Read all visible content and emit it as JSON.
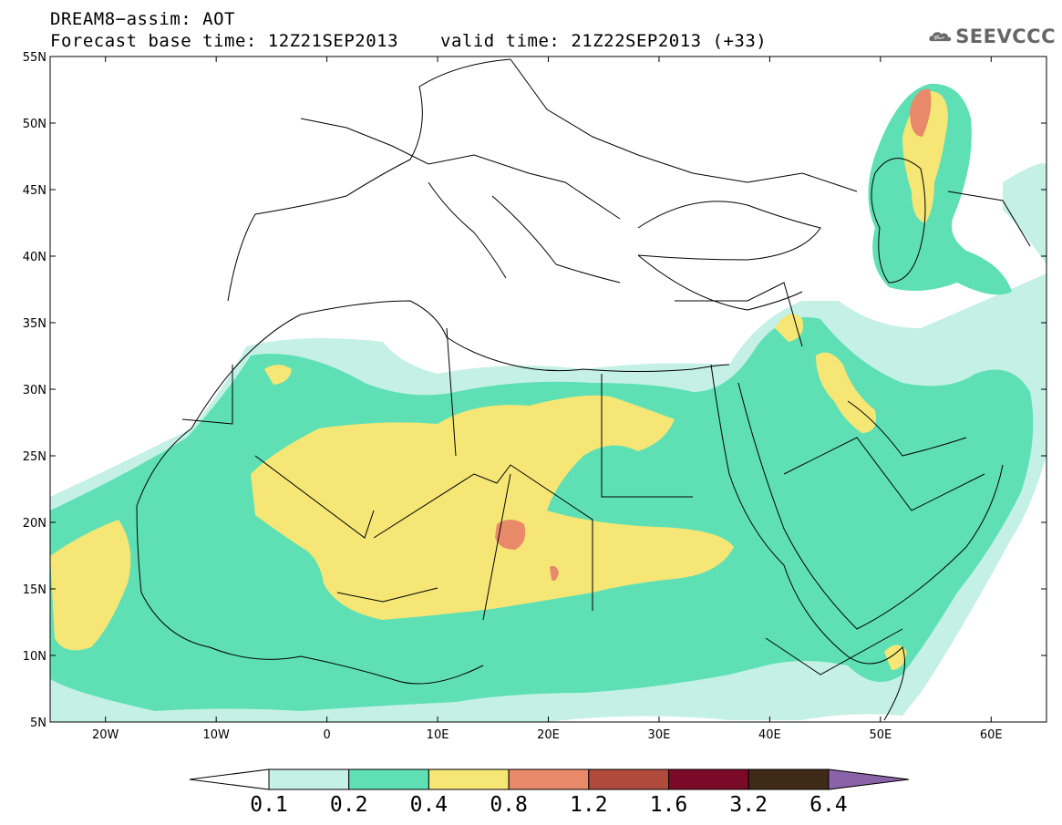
{
  "header": {
    "title_line1": "DREAM8−assim: AOT",
    "base_time_label": "Forecast base time: 12Z21SEP2013",
    "valid_time_label": "valid time: 21Z22SEP2013 (+33)"
  },
  "logo": {
    "icon": "cloud-icon",
    "text": "SEEVCCC"
  },
  "map": {
    "lat_labels": [
      "55N",
      "50N",
      "45N",
      "40N",
      "35N",
      "30N",
      "25N",
      "20N",
      "15N",
      "10N",
      "5N"
    ],
    "lon_labels": [
      "20W",
      "10W",
      "0",
      "10E",
      "20E",
      "30E",
      "40E",
      "50E",
      "60E"
    ],
    "extent": {
      "lon": [
        -25,
        65
      ],
      "lat": [
        5,
        55
      ]
    }
  },
  "colorbar": {
    "thresholds": [
      "0.1",
      "0.2",
      "0.4",
      "0.8",
      "1.2",
      "1.6",
      "3.2",
      "6.4"
    ],
    "colors": [
      "#ffffff",
      "#c4f0e6",
      "#5ee0b4",
      "#f5e676",
      "#e8896a",
      "#b04a3c",
      "#7a0a28",
      "#3e2a16",
      "#8a62a8"
    ]
  }
}
